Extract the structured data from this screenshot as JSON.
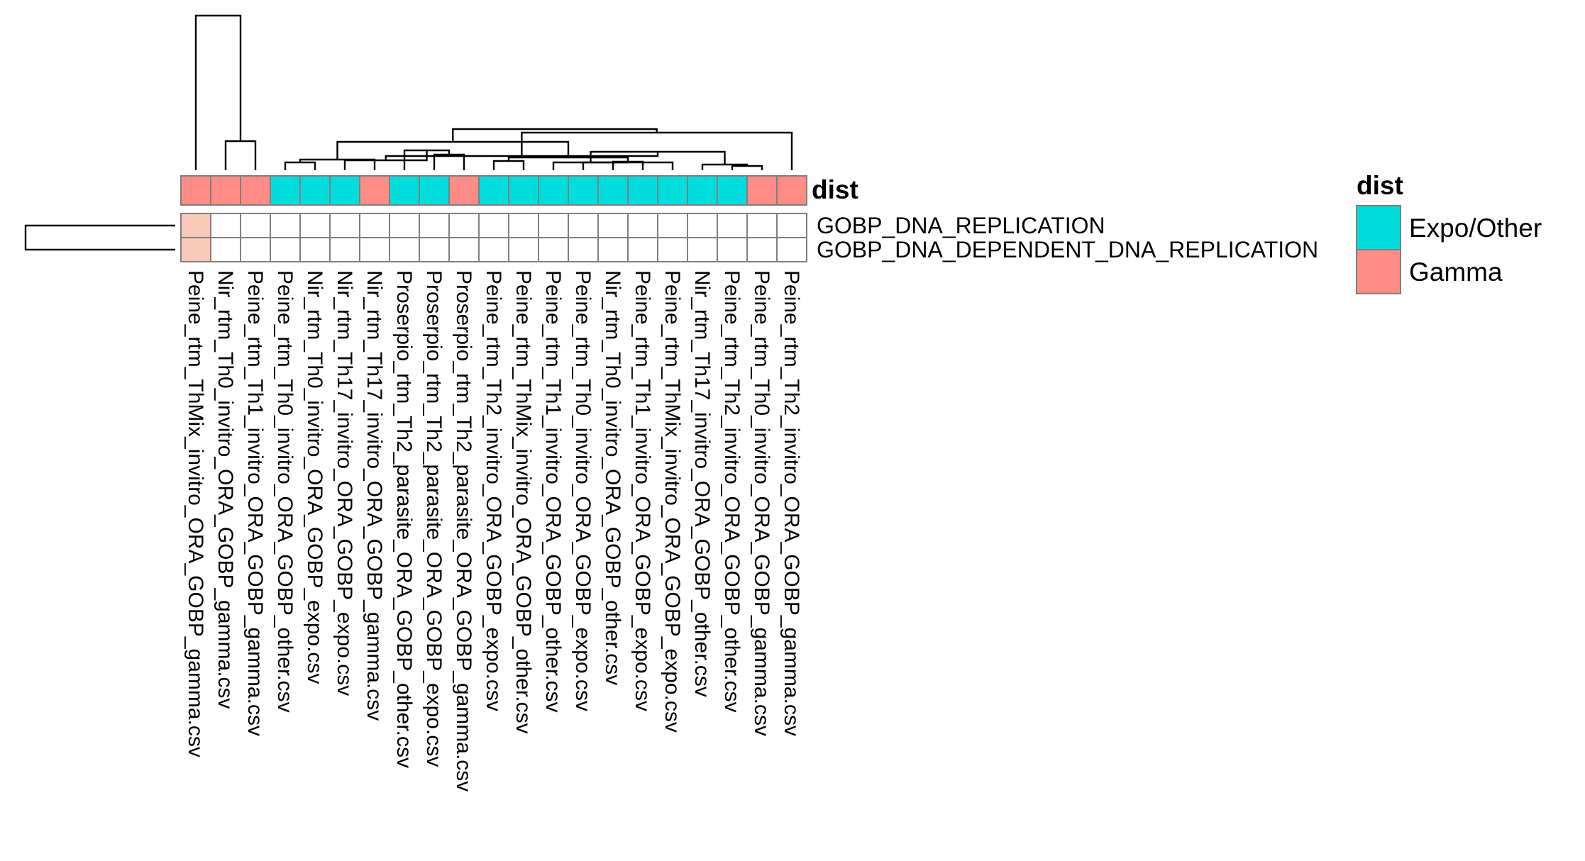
{
  "chart_data": {
    "type": "heatmap",
    "annotation": {
      "name": "dist",
      "colors": {
        "Expo/Other": "#00DDDD",
        "Gamma": "#FF8C85"
      }
    },
    "columns": [
      {
        "label": "Peine_rtm_ThMix_invitro_ORA_GOBP_gamma.csv",
        "dist": "Gamma"
      },
      {
        "label": "Nir_rtm_Th0_invitro_ORA_GOBP_gamma.csv",
        "dist": "Gamma"
      },
      {
        "label": "Peine_rtm_Th1_invitro_ORA_GOBP_gamma.csv",
        "dist": "Gamma"
      },
      {
        "label": "Peine_rtm_Th0_invitro_ORA_GOBP_other.csv",
        "dist": "Expo/Other"
      },
      {
        "label": "Nir_rtm_Th0_invitro_ORA_GOBP_expo.csv",
        "dist": "Expo/Other"
      },
      {
        "label": "Nir_rtm_Th17_invitro_ORA_GOBP_expo.csv",
        "dist": "Expo/Other"
      },
      {
        "label": "Nir_rtm_Th17_invitro_ORA_GOBP_gamma.csv",
        "dist": "Gamma"
      },
      {
        "label": "Proserpio_rtm_Th2_parasite_ORA_GOBP_other.csv",
        "dist": "Expo/Other"
      },
      {
        "label": "Proserpio_rtm_Th2_parasite_ORA_GOBP_expo.csv",
        "dist": "Expo/Other"
      },
      {
        "label": "Proserpio_rtm_Th2_parasite_ORA_GOBP_gamma.csv",
        "dist": "Gamma"
      },
      {
        "label": "Peine_rtm_Th2_invitro_ORA_GOBP_expo.csv",
        "dist": "Expo/Other"
      },
      {
        "label": "Peine_rtm_ThMix_invitro_ORA_GOBP_other.csv",
        "dist": "Expo/Other"
      },
      {
        "label": "Peine_rtm_Th1_invitro_ORA_GOBP_other.csv",
        "dist": "Expo/Other"
      },
      {
        "label": "Peine_rtm_Th0_invitro_ORA_GOBP_expo.csv",
        "dist": "Expo/Other"
      },
      {
        "label": "Nir_rtm_Th0_invitro_ORA_GOBP_other.csv",
        "dist": "Expo/Other"
      },
      {
        "label": "Peine_rtm_Th1_invitro_ORA_GOBP_expo.csv",
        "dist": "Expo/Other"
      },
      {
        "label": "Peine_rtm_ThMix_invitro_ORA_GOBP_expo.csv",
        "dist": "Expo/Other"
      },
      {
        "label": "Nir_rtm_Th17_invitro_ORA_GOBP_other.csv",
        "dist": "Expo/Other"
      },
      {
        "label": "Peine_rtm_Th2_invitro_ORA_GOBP_other.csv",
        "dist": "Expo/Other"
      },
      {
        "label": "Peine_rtm_Th0_invitro_ORA_GOBP_gamma.csv",
        "dist": "Gamma"
      },
      {
        "label": "Peine_rtm_Th2_invitro_ORA_GOBP_gamma.csv",
        "dist": "Gamma"
      }
    ],
    "rows": [
      "GOBP_DNA_REPLICATION",
      "GOBP_DNA_DEPENDENT_DNA_REPLICATION"
    ],
    "values": [
      [
        0.08,
        0,
        0,
        0,
        0,
        0,
        0,
        0,
        0,
        0,
        0,
        0,
        0,
        0,
        0,
        0,
        0,
        0,
        0,
        0,
        0
      ],
      [
        0.08,
        0,
        0,
        0,
        0,
        0,
        0,
        0,
        0,
        0,
        0,
        0,
        0,
        0,
        0,
        0,
        0,
        0,
        0,
        0,
        0
      ]
    ],
    "value_colors": {
      "low": "#FFFFFF",
      "high": "#F8C8B8"
    },
    "legend": {
      "title": "dist",
      "entries": [
        "Expo/Other",
        "Gamma"
      ],
      "placement": "right"
    }
  }
}
